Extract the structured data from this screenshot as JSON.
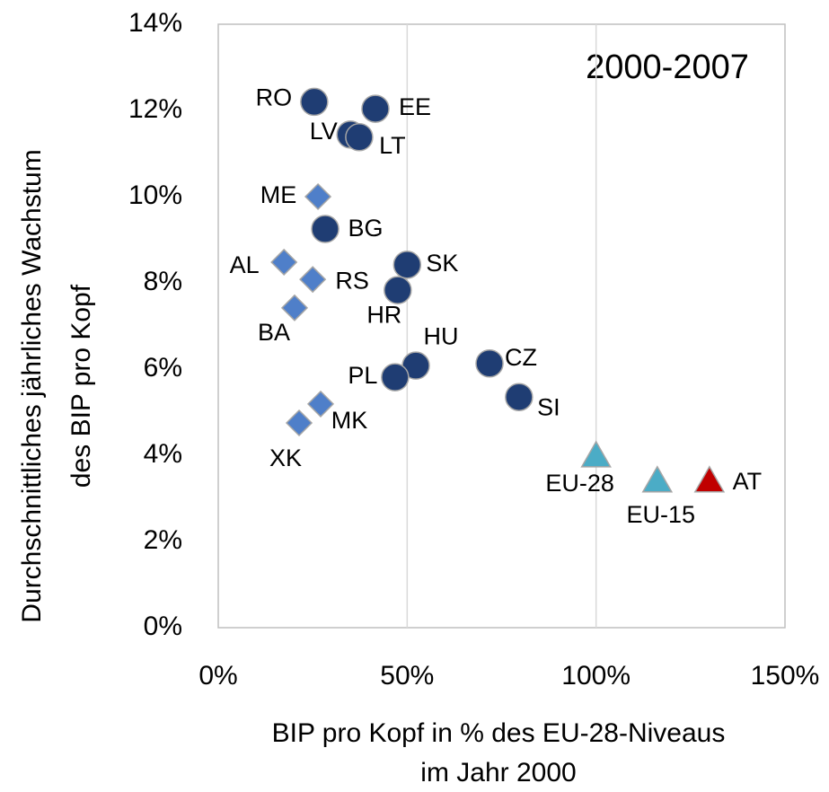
{
  "chart_data": {
    "type": "scatter",
    "annotation": "2000-2007",
    "ylabel": [
      "Durchschnittliches jährliches Wachstum",
      "des BIP pro Kopf"
    ],
    "xlabel": [
      "BIP pro Kopf in % des EU-28-Niveaus",
      "im Jahr 2000"
    ],
    "xlim": [
      0,
      150
    ],
    "xticks": [
      {
        "value": 0,
        "label": "0%"
      },
      {
        "value": 50,
        "label": "50%"
      },
      {
        "value": 100,
        "label": "100%"
      },
      {
        "value": 150,
        "label": "150%"
      }
    ],
    "ylim": [
      0,
      14
    ],
    "yticks": [
      {
        "value": 0,
        "label": "0%"
      },
      {
        "value": 2,
        "label": "2%"
      },
      {
        "value": 4,
        "label": "4%"
      },
      {
        "value": 6,
        "label": "6%"
      },
      {
        "value": 8,
        "label": "8%"
      },
      {
        "value": 10,
        "label": "10%"
      },
      {
        "value": 12,
        "label": "12%"
      },
      {
        "value": 14,
        "label": "14%"
      }
    ],
    "grid": "x",
    "series": [
      {
        "marker": "circle",
        "color": "#1f3d73",
        "labels": [
          "RO",
          "EE",
          "LV",
          "LT",
          "BG",
          "SK",
          "HR",
          "HU",
          "CZ",
          "PL",
          "SI"
        ],
        "x": [
          25.4,
          41.6,
          35,
          37.3,
          28.3,
          50,
          47.5,
          52.3,
          71.8,
          46.8,
          79.6
        ],
        "values": [
          12.2,
          12.04,
          11.44,
          11.38,
          9.25,
          8.42,
          7.83,
          6.08,
          6.13,
          5.81,
          5.35
        ]
      },
      {
        "marker": "diamond",
        "color": "#4f7fc9",
        "labels": [
          "ME",
          "AL",
          "RS",
          "BA",
          "MK",
          "XK"
        ],
        "x": [
          26.4,
          17.4,
          25,
          20.2,
          27.1,
          21.4
        ],
        "values": [
          10.0,
          8.48,
          8.08,
          7.42,
          5.19,
          4.75
        ]
      },
      {
        "marker": "triangle",
        "color": "#4bacc6",
        "labels": [
          "EU-28",
          "EU-15"
        ],
        "x": [
          100,
          116.2
        ],
        "values": [
          3.96,
          3.38
        ]
      },
      {
        "marker": "triangle",
        "color": "#c00000",
        "labels": [
          "AT"
        ],
        "x": [
          130
        ],
        "values": [
          3.38
        ]
      }
    ]
  }
}
